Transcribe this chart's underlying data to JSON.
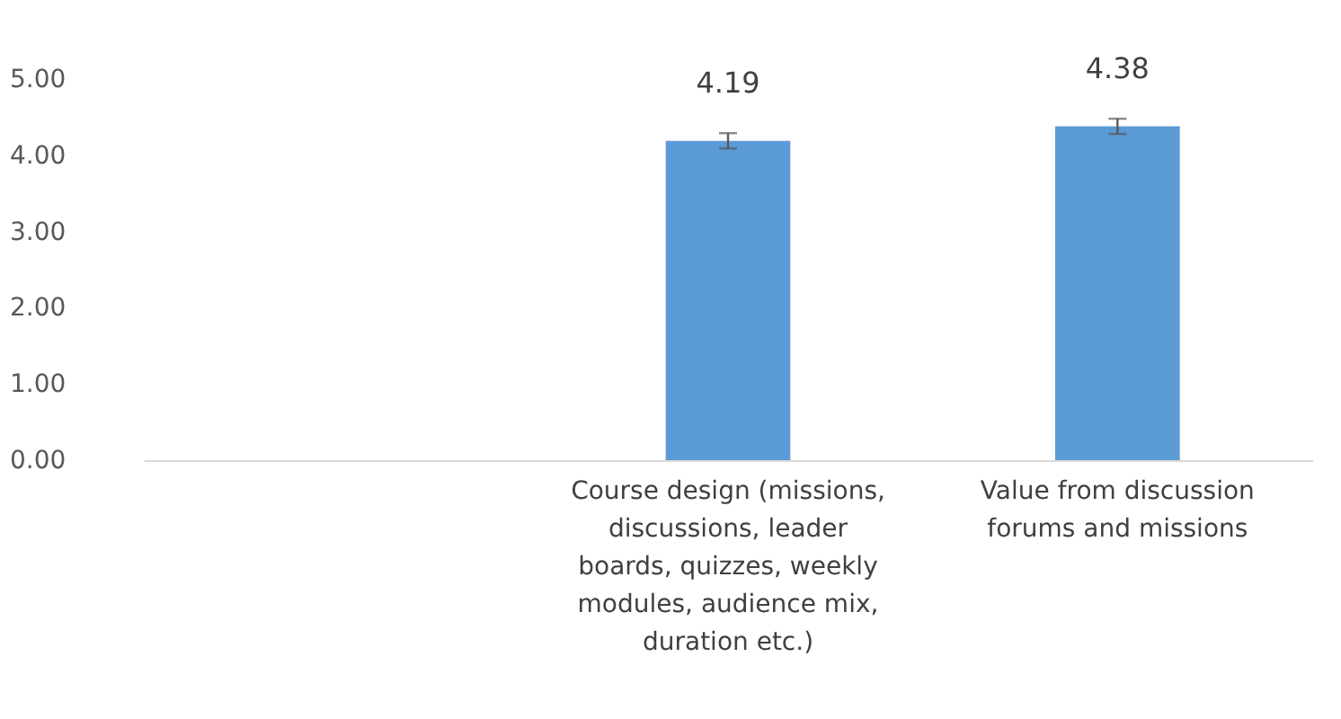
{
  "chart_data": {
    "type": "bar",
    "categories": [
      null,
      "Course design (missions, discussions, leader boards, quizzes, weekly modules, audience mix, duration etc.)",
      "Value from discussion forums and missions"
    ],
    "values": [
      null,
      4.19,
      4.38
    ],
    "errors": [
      null,
      0.1,
      0.1
    ],
    "color": "#5b9bd5",
    "data_labels": true,
    "ylim": [
      0,
      5
    ],
    "yticks": [
      {
        "value": 0,
        "label": "0.00"
      },
      {
        "value": 1,
        "label": "1.00"
      },
      {
        "value": 2,
        "label": "2.00"
      },
      {
        "value": 3,
        "label": "3.00"
      },
      {
        "value": 4,
        "label": "4.00"
      },
      {
        "value": 5,
        "label": "5.00"
      }
    ],
    "grid": false
  }
}
